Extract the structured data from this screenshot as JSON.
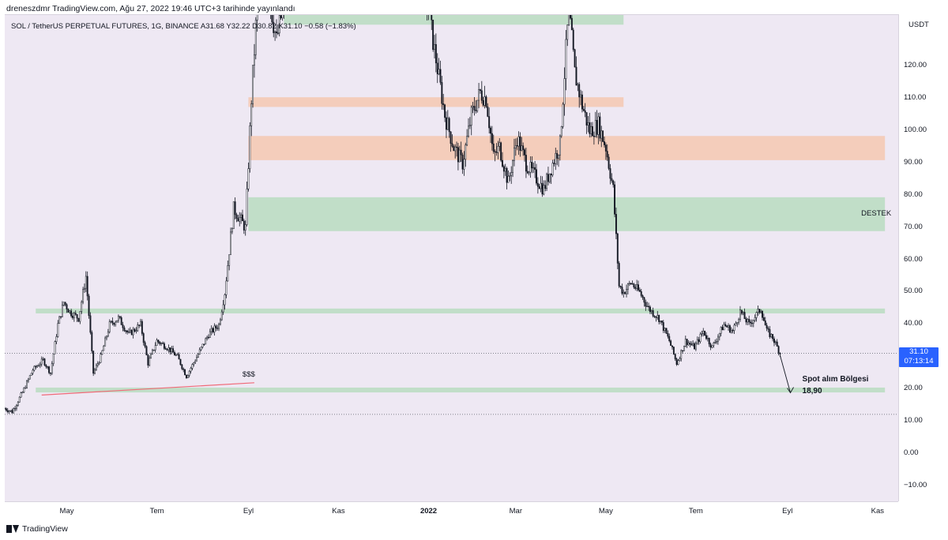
{
  "header": {
    "published_line": "drenes​zdmr TradingView.com, Ağu 27, 2022 19:46 UTC+3 tarihinde yayınlandı"
  },
  "legend": {
    "text": "SOL / TetherUS PERPETUAL FUTURES, 1G, BINANCE  A31.68  Y32.22  D30.82  K31.10  −0.58 (−1.83%)"
  },
  "footer": {
    "brand": "TradingView"
  },
  "colors": {
    "pane_bg": "#eee8f3",
    "up_candle": "#ffffff",
    "down_candle": "#131722",
    "support_zone": "#b9dcc0",
    "resistance_zone": "#f5c8b0",
    "trendline": "#f06a78",
    "last_price_tag": "#2962ff"
  },
  "chart_data": {
    "type": "candlestick",
    "symbol": "SOL / TetherUS PERPETUAL FUTURES",
    "interval": "1G",
    "exchange": "BINANCE",
    "ohlc_last": {
      "open": 31.68,
      "high": 32.22,
      "low": 30.82,
      "close": 31.1,
      "change": -0.58,
      "change_pct": -1.83
    },
    "ylim": [
      -15,
      136
    ],
    "y_unit": "USDT",
    "y_ticks": [
      -10,
      0,
      10,
      20,
      30,
      40,
      50,
      60,
      70,
      80,
      90,
      100,
      110,
      120
    ],
    "y_tick_labels": [
      "−10.00",
      "0.00",
      "10.00",
      "20.00",
      "30.00",
      "40.00",
      "50.00",
      "60.00",
      "70.00",
      "80.00",
      "90.00",
      "100.00",
      "110.00",
      "120.00"
    ],
    "x_range": [
      "2021-03-20",
      "2022-11-15"
    ],
    "x_ticks": [
      {
        "label": "May",
        "date": "2021-05-01",
        "bold": false
      },
      {
        "label": "Tem",
        "date": "2021-07-01",
        "bold": false
      },
      {
        "label": "Eyl",
        "date": "2021-09-01",
        "bold": false
      },
      {
        "label": "Kas",
        "date": "2021-11-01",
        "bold": false
      },
      {
        "label": "2022",
        "date": "2022-01-01",
        "bold": true
      },
      {
        "label": "Mar",
        "date": "2022-03-01",
        "bold": false
      },
      {
        "label": "May",
        "date": "2022-05-01",
        "bold": false
      },
      {
        "label": "Tem",
        "date": "2022-07-01",
        "bold": false
      },
      {
        "label": "Eyl",
        "date": "2022-09-01",
        "bold": false
      },
      {
        "label": "Kas",
        "date": "2022-11-01",
        "bold": false
      }
    ],
    "price_path": [
      [
        "2021-03-20",
        14
      ],
      [
        "2021-03-25",
        13
      ],
      [
        "2021-04-01",
        19
      ],
      [
        "2021-04-08",
        26
      ],
      [
        "2021-04-15",
        29
      ],
      [
        "2021-04-20",
        25
      ],
      [
        "2021-04-25",
        40
      ],
      [
        "2021-04-29",
        47
      ],
      [
        "2021-05-03",
        44
      ],
      [
        "2021-05-09",
        42
      ],
      [
        "2021-05-14",
        55
      ],
      [
        "2021-05-19",
        25
      ],
      [
        "2021-05-24",
        30
      ],
      [
        "2021-05-30",
        40
      ],
      [
        "2021-06-05",
        42
      ],
      [
        "2021-06-12",
        37
      ],
      [
        "2021-06-20",
        40
      ],
      [
        "2021-06-25",
        28
      ],
      [
        "2021-07-01",
        35
      ],
      [
        "2021-07-08",
        33
      ],
      [
        "2021-07-15",
        30
      ],
      [
        "2021-07-21",
        24
      ],
      [
        "2021-07-28",
        30
      ],
      [
        "2021-08-05",
        37
      ],
      [
        "2021-08-12",
        40
      ],
      [
        "2021-08-16",
        50
      ],
      [
        "2021-08-22",
        76
      ],
      [
        "2021-08-30",
        70
      ],
      [
        "2021-09-03",
        110
      ],
      [
        "2021-09-07",
        140
      ],
      [
        "2021-09-12",
        150
      ],
      [
        "2021-09-20",
        128
      ],
      [
        "2021-09-25",
        140
      ],
      [
        "2021-10-05",
        150
      ],
      [
        "2021-12-28",
        150
      ],
      [
        "2022-01-05",
        125
      ],
      [
        "2022-01-12",
        105
      ],
      [
        "2022-01-18",
        95
      ],
      [
        "2022-01-24",
        90
      ],
      [
        "2022-01-30",
        105
      ],
      [
        "2022-02-05",
        112
      ],
      [
        "2022-02-09",
        110
      ],
      [
        "2022-02-14",
        92
      ],
      [
        "2022-02-18",
        95
      ],
      [
        "2022-02-24",
        84
      ],
      [
        "2022-03-02",
        98
      ],
      [
        "2022-03-08",
        90
      ],
      [
        "2022-03-14",
        86
      ],
      [
        "2022-03-20",
        82
      ],
      [
        "2022-03-26",
        90
      ],
      [
        "2022-03-31",
        96
      ],
      [
        "2022-04-04",
        125
      ],
      [
        "2022-04-06",
        138
      ],
      [
        "2022-04-10",
        118
      ],
      [
        "2022-04-15",
        108
      ],
      [
        "2022-04-20",
        100
      ],
      [
        "2022-04-26",
        102
      ],
      [
        "2022-05-01",
        95
      ],
      [
        "2022-05-06",
        82
      ],
      [
        "2022-05-10",
        52
      ],
      [
        "2022-05-13",
        50
      ],
      [
        "2022-05-18",
        53
      ],
      [
        "2022-05-24",
        50
      ],
      [
        "2022-05-30",
        45
      ],
      [
        "2022-06-06",
        42
      ],
      [
        "2022-06-13",
        35
      ],
      [
        "2022-06-18",
        28
      ],
      [
        "2022-06-24",
        35
      ],
      [
        "2022-06-30",
        33
      ],
      [
        "2022-07-06",
        38
      ],
      [
        "2022-07-12",
        33
      ],
      [
        "2022-07-20",
        40
      ],
      [
        "2022-07-26",
        38
      ],
      [
        "2022-07-31",
        44
      ],
      [
        "2022-08-06",
        40
      ],
      [
        "2022-08-14",
        45
      ],
      [
        "2022-08-18",
        38
      ],
      [
        "2022-08-22",
        36
      ],
      [
        "2022-08-27",
        31.1
      ]
    ],
    "zones": [
      {
        "kind": "support",
        "from": "2021-09-25",
        "to": "2022-05-13",
        "low": 133,
        "high": 140
      },
      {
        "kind": "resistance",
        "from": "2021-09-01",
        "to": "2022-05-13",
        "low": 107.5,
        "high": 110.5
      },
      {
        "kind": "resistance",
        "from": "2021-09-01",
        "to": "2022-11-06",
        "low": 91,
        "high": 98.5
      },
      {
        "kind": "support",
        "from": "2021-09-01",
        "to": "2022-11-06",
        "low": 69,
        "high": 79.5
      },
      {
        "kind": "support",
        "from": "2021-04-10",
        "to": "2022-11-06",
        "low": 43.5,
        "high": 45
      },
      {
        "kind": "support",
        "from": "2021-04-10",
        "to": "2022-11-06",
        "low": 19,
        "high": 20.5
      }
    ],
    "trendline": {
      "from": [
        "2021-04-14",
        18.2
      ],
      "to": [
        "2021-09-05",
        22
      ]
    },
    "projection_arrow": {
      "from": [
        "2022-08-27",
        30.5
      ],
      "to": [
        "2022-09-03",
        18.9
      ]
    },
    "hlines": [
      31.1,
      12.2
    ],
    "last_price": {
      "value_label": "31.10",
      "countdown": "07:13:14"
    },
    "annotations": {
      "destek": "DESTEK",
      "sss": "$$$",
      "spot_title": "Spot alım Bölgesi",
      "spot_price": "18,90"
    }
  }
}
